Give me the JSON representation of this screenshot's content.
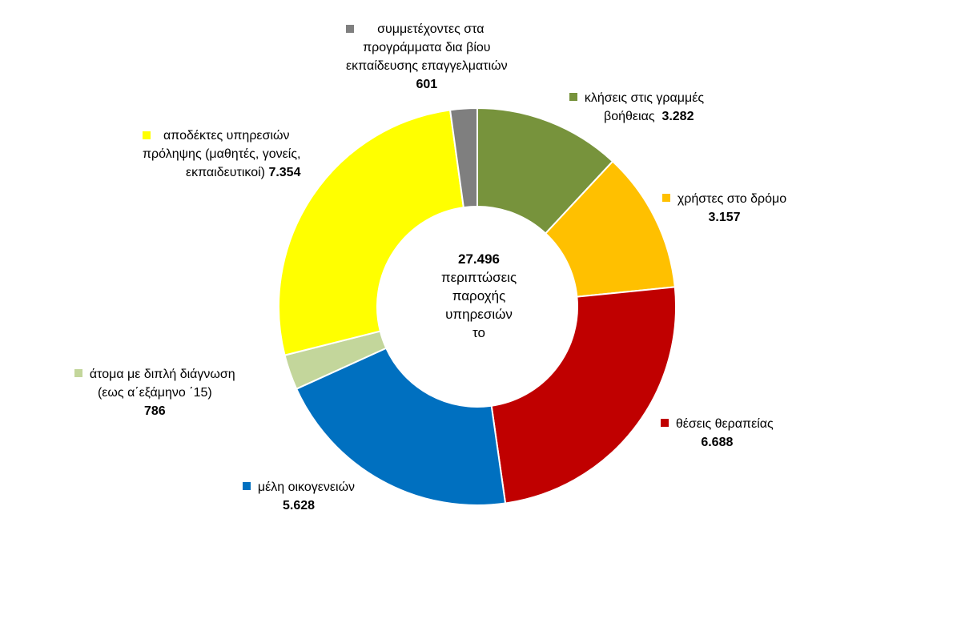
{
  "chart_data": {
    "type": "pie",
    "donut": true,
    "center_text": {
      "total": "27.496",
      "lines": [
        "περιπτώσεις",
        "παροχής",
        "υπηρεσιών",
        "το"
      ]
    },
    "slices": [
      {
        "label_lines": [
          "κλήσεις στις γραμμές",
          "βοήθειας"
        ],
        "value": 3282,
        "value_text": "3.282",
        "color": "#77933c"
      },
      {
        "label_lines": [
          "χρήστες στο δρόμο"
        ],
        "value": 3157,
        "value_text": "3.157",
        "color": "#ffc000"
      },
      {
        "label_lines": [
          "θέσεις θεραπείας"
        ],
        "value": 6688,
        "value_text": "6.688",
        "color": "#c00000"
      },
      {
        "label_lines": [
          "μέλη οικογενειών"
        ],
        "value": 5628,
        "value_text": "5.628",
        "color": "#0070c0"
      },
      {
        "label_lines": [
          "άτομα με διπλή διάγνωση",
          "(εως α΄εξάμηνο ΄15)"
        ],
        "value": 786,
        "value_text": "786",
        "color": "#c3d69b"
      },
      {
        "label_lines": [
          "αποδέκτες υπηρεσιών",
          "πρόληψης (μαθητές, γονείς,",
          "εκπαιδευτικοί)"
        ],
        "value": 7354,
        "value_text": "7.354",
        "color": "#ffff00"
      },
      {
        "label_lines": [
          "συμμετέχοντες στα",
          "προγράμματα δια βίου",
          "εκπαίδευσης επαγγελματιών"
        ],
        "value": 601,
        "value_text": "601",
        "color": "#7f7f7f"
      }
    ]
  }
}
